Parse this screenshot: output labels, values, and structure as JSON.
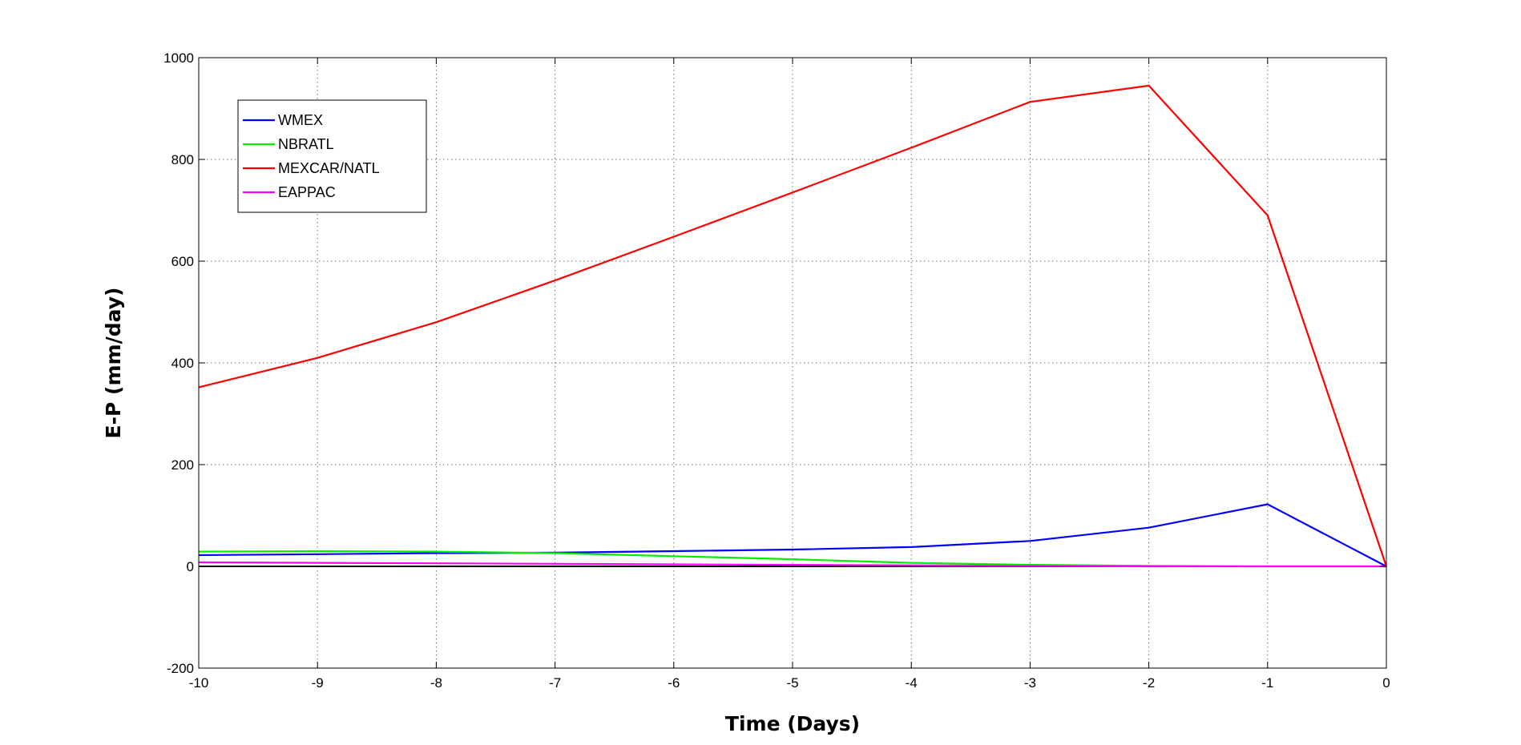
{
  "chart_data": {
    "type": "line",
    "title": "",
    "xlabel": "Time (Days)",
    "ylabel": "E-P (mm/day)",
    "xlim": [
      -10,
      0
    ],
    "ylim": [
      -200,
      1000
    ],
    "x_ticks": [
      -10,
      -9,
      -8,
      -7,
      -6,
      -5,
      -4,
      -3,
      -2,
      -1,
      0
    ],
    "y_ticks": [
      -200,
      0,
      200,
      400,
      600,
      800,
      1000
    ],
    "grid": true,
    "legend_position": "top-left",
    "zero_line": {
      "value": 0,
      "color": "#000000"
    },
    "series": [
      {
        "name": "WMEX",
        "color": "#0000ff",
        "x": [
          -10,
          -9,
          -8,
          -7,
          -6,
          -5,
          -4,
          -3,
          -2,
          -1,
          0
        ],
        "y": [
          22,
          24,
          26,
          27,
          30,
          33,
          38,
          50,
          76,
          122,
          0
        ]
      },
      {
        "name": "NBRATL",
        "color": "#00ee00",
        "x": [
          -10,
          -9,
          -8,
          -7,
          -6,
          -5,
          -4,
          -3,
          -2,
          -1,
          0
        ],
        "y": [
          29,
          30,
          29,
          26,
          20,
          14,
          7,
          3,
          1,
          0,
          0
        ]
      },
      {
        "name": "MEXCAR/NATL",
        "color": "#ff0000",
        "x": [
          -10,
          -9,
          -8,
          -7,
          -6,
          -5,
          -4,
          -3,
          -2,
          -1,
          0
        ],
        "y": [
          352,
          410,
          480,
          562,
          648,
          735,
          823,
          913,
          945,
          690,
          0
        ]
      },
      {
        "name": "EAPPAC",
        "color": "#ff00ff",
        "x": [
          -10,
          -9,
          -8,
          -7,
          -6,
          -5,
          -4,
          -3,
          -2,
          -1,
          0
        ],
        "y": [
          8,
          7,
          6,
          5,
          4,
          3,
          2,
          1,
          0,
          0,
          0
        ]
      }
    ]
  }
}
